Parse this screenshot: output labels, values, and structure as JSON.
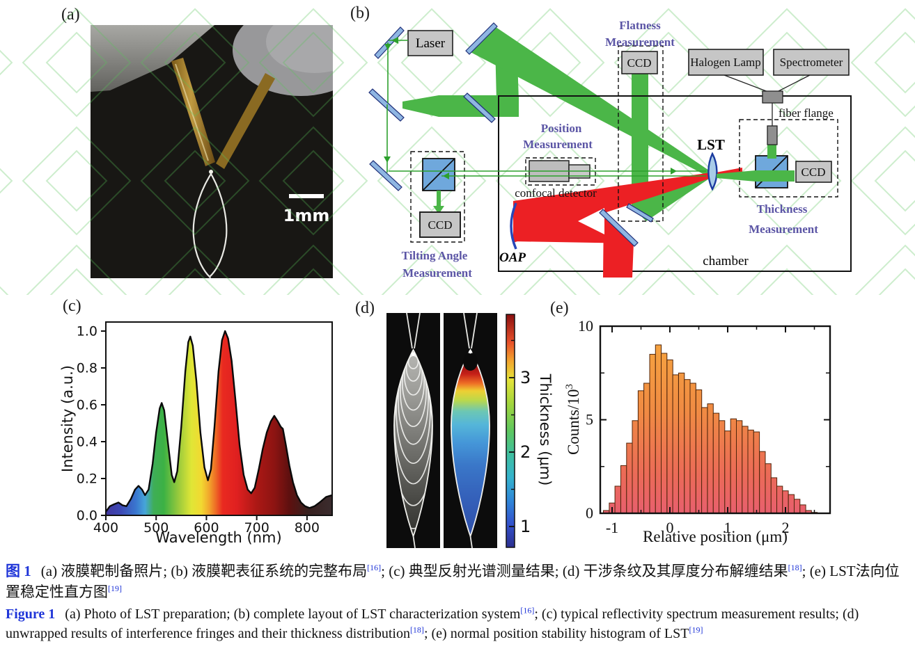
{
  "panel_labels": {
    "a": "(a)",
    "b": "(b)",
    "c": "(c)",
    "d": "(d)",
    "e": "(e)"
  },
  "panel_a": {
    "scale_bar_label": "1mm"
  },
  "panel_b": {
    "laser": "Laser",
    "ccd": "CCD",
    "halogen_lamp": "Halogen Lamp",
    "spectrometer": "Spectrometer",
    "fiber_flange": "fiber flange",
    "confocal_detector": "confocal detector",
    "chamber": "chamber",
    "oap": "OAP",
    "lst": "LST",
    "flatness": [
      "Flatness",
      "Measurement"
    ],
    "position": [
      "Position",
      "Measurement"
    ],
    "tilting": [
      "Tilting Angle",
      "Measurement"
    ],
    "thickness": [
      "Thickness",
      "Measurement"
    ],
    "colors": {
      "beam_green": "#4bb648",
      "beam_red": "#ec2024",
      "label_purple": "#5b55a5"
    }
  },
  "chart_data": [
    {
      "type": "area",
      "panel": "c",
      "xlabel": "Wavelength (nm)",
      "ylabel": "Intensity (a.u.)",
      "xlim": [
        400,
        850
      ],
      "ylim": [
        0,
        1.05
      ],
      "xticks": [
        400,
        500,
        600,
        700,
        800
      ],
      "yticks": [
        "0.0",
        "0.2",
        "0.4",
        "0.6",
        "0.8",
        "1.0"
      ],
      "fill": "spectral-rainbow-gradient",
      "points": [
        [
          400,
          0.02
        ],
        [
          408,
          0.05
        ],
        [
          416,
          0.06
        ],
        [
          425,
          0.07
        ],
        [
          433,
          0.055
        ],
        [
          441,
          0.05
        ],
        [
          450,
          0.09
        ],
        [
          458,
          0.14
        ],
        [
          465,
          0.16
        ],
        [
          472,
          0.14
        ],
        [
          478,
          0.11
        ],
        [
          485,
          0.14
        ],
        [
          493,
          0.28
        ],
        [
          500,
          0.45
        ],
        [
          507,
          0.58
        ],
        [
          511,
          0.61
        ],
        [
          516,
          0.57
        ],
        [
          524,
          0.38
        ],
        [
          531,
          0.22
        ],
        [
          536,
          0.18
        ],
        [
          542,
          0.24
        ],
        [
          550,
          0.48
        ],
        [
          558,
          0.78
        ],
        [
          564,
          0.94
        ],
        [
          568,
          0.97
        ],
        [
          573,
          0.92
        ],
        [
          580,
          0.73
        ],
        [
          588,
          0.45
        ],
        [
          596,
          0.26
        ],
        [
          603,
          0.19
        ],
        [
          609,
          0.25
        ],
        [
          616,
          0.48
        ],
        [
          624,
          0.78
        ],
        [
          631,
          0.95
        ],
        [
          637,
          1.0
        ],
        [
          643,
          0.96
        ],
        [
          650,
          0.84
        ],
        [
          658,
          0.62
        ],
        [
          666,
          0.38
        ],
        [
          674,
          0.22
        ],
        [
          682,
          0.14
        ],
        [
          689,
          0.12
        ],
        [
          696,
          0.15
        ],
        [
          704,
          0.25
        ],
        [
          712,
          0.36
        ],
        [
          720,
          0.45
        ],
        [
          728,
          0.51
        ],
        [
          735,
          0.54
        ],
        [
          742,
          0.51
        ],
        [
          748,
          0.48
        ],
        [
          752,
          0.47
        ],
        [
          758,
          0.38
        ],
        [
          765,
          0.27
        ],
        [
          772,
          0.18
        ],
        [
          780,
          0.11
        ],
        [
          788,
          0.07
        ],
        [
          796,
          0.05
        ],
        [
          805,
          0.04
        ],
        [
          815,
          0.05
        ],
        [
          825,
          0.07
        ],
        [
          838,
          0.1
        ],
        [
          850,
          0.11
        ]
      ]
    },
    {
      "type": "heatmap",
      "panel": "d",
      "colorbar_label": "Thickness (μm)",
      "colorbar_ticks": [
        1,
        2,
        3
      ],
      "colorbar_minor_ticks": [
        1.5,
        2.5,
        3.5
      ],
      "colorbar_range": [
        0.7,
        3.75
      ]
    },
    {
      "type": "bar",
      "panel": "e",
      "xlabel": "Relative position (μm)",
      "ylabel_base": "Counts/10",
      "ylabel_exp": "3",
      "xlim": [
        -1.2,
        2.78
      ],
      "ylim": [
        0,
        10
      ],
      "xticks": [
        -1,
        0,
        1,
        2
      ],
      "yticks": [
        0,
        5,
        10
      ],
      "minor_xticks": [
        -0.5,
        0.5,
        1.5,
        2.5
      ],
      "minor_yticks": [
        2.5,
        7.5
      ],
      "bin_start": -1.15,
      "bin_width": 0.1,
      "values": [
        0.15,
        0.55,
        1.45,
        2.55,
        3.75,
        4.95,
        6.55,
        6.95,
        8.5,
        9.0,
        8.55,
        8.2,
        7.4,
        7.5,
        7.15,
        6.95,
        6.6,
        5.65,
        5.85,
        5.35,
        4.95,
        4.4,
        5.05,
        4.95,
        4.65,
        4.45,
        4.35,
        3.3,
        2.65,
        1.9,
        1.45,
        1.2,
        1.0,
        0.75,
        0.45,
        0.15,
        0.05
      ]
    }
  ],
  "caption": {
    "zh_label": "图 1",
    "zh_1": "(a) 液膜靶制备照片; (b) 液膜靶表征系统的完整布局",
    "zh_ref1": "[16]",
    "zh_2": "; (c) 典型反射光谱测量结果; (d) 干涉条纹及其厚度分布解缠结果",
    "zh_ref2": "[18]",
    "zh_3": "; (e) LST法向位置稳定性直方图",
    "zh_ref3": "[19]",
    "en_label": "Figure 1",
    "en_1": "(a) Photo of LST preparation; (b) complete layout of LST characterization system",
    "en_ref1": "[16]",
    "en_2": "; (c) typical reflectivity spectrum measurement results; (d) unwrapped results of interference fringes and their thickness distribution",
    "en_ref2": "[18]",
    "en_3": "; (e) normal position stability histogram of LST",
    "en_ref3": "[19]"
  }
}
